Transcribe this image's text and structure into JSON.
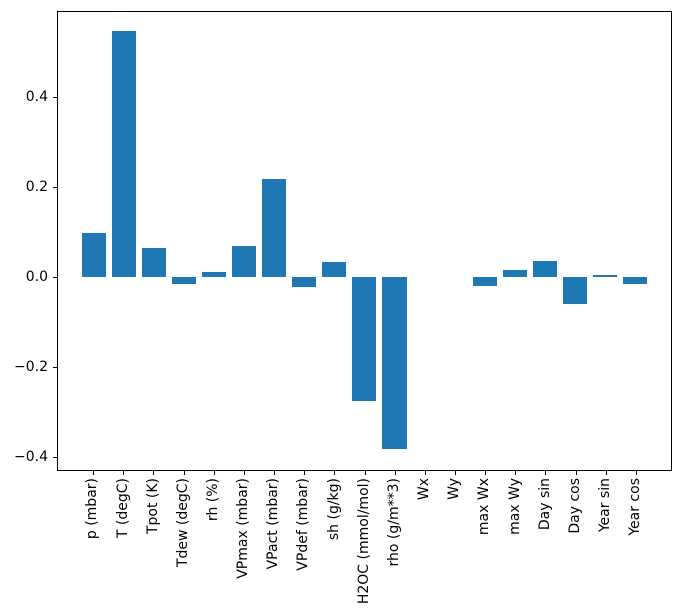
{
  "figure": {
    "background": "#ffffff",
    "axis_color": "#000000"
  },
  "chart_data": {
    "type": "bar",
    "title": "",
    "xlabel": "",
    "ylabel": "",
    "bar_color": "#1f77b4",
    "grid": "off",
    "legend": "none",
    "x_tick_rotation": 90,
    "categories": [
      "p (mbar)",
      "T (degC)",
      "Tpot (K)",
      "Tdew (degC)",
      "rh (%)",
      "VPmax (mbar)",
      "VPact (mbar)",
      "VPdef (mbar)",
      "sh (g/kg)",
      "H2OC (mmol/mol)",
      "rho (g/m**3)",
      "Wx",
      "Wy",
      "max Wx",
      "max Wy",
      "Day sin",
      "Day cos",
      "Year sin",
      "Year cos"
    ],
    "values": [
      0.098,
      0.55,
      0.064,
      -0.016,
      0.012,
      0.069,
      0.218,
      -0.022,
      0.034,
      -0.276,
      -0.383,
      0.0,
      0.0,
      -0.019,
      0.016,
      0.035,
      -0.06,
      0.005,
      -0.016
    ],
    "ylim": [
      -0.431,
      0.592
    ],
    "yticks": [
      0.4,
      0.2,
      0.0,
      -0.2,
      -0.4
    ],
    "ytick_labels": [
      "0.4",
      "0.2",
      "0.0",
      "−0.2",
      "−0.4"
    ],
    "bar_width_fraction": 0.8
  }
}
